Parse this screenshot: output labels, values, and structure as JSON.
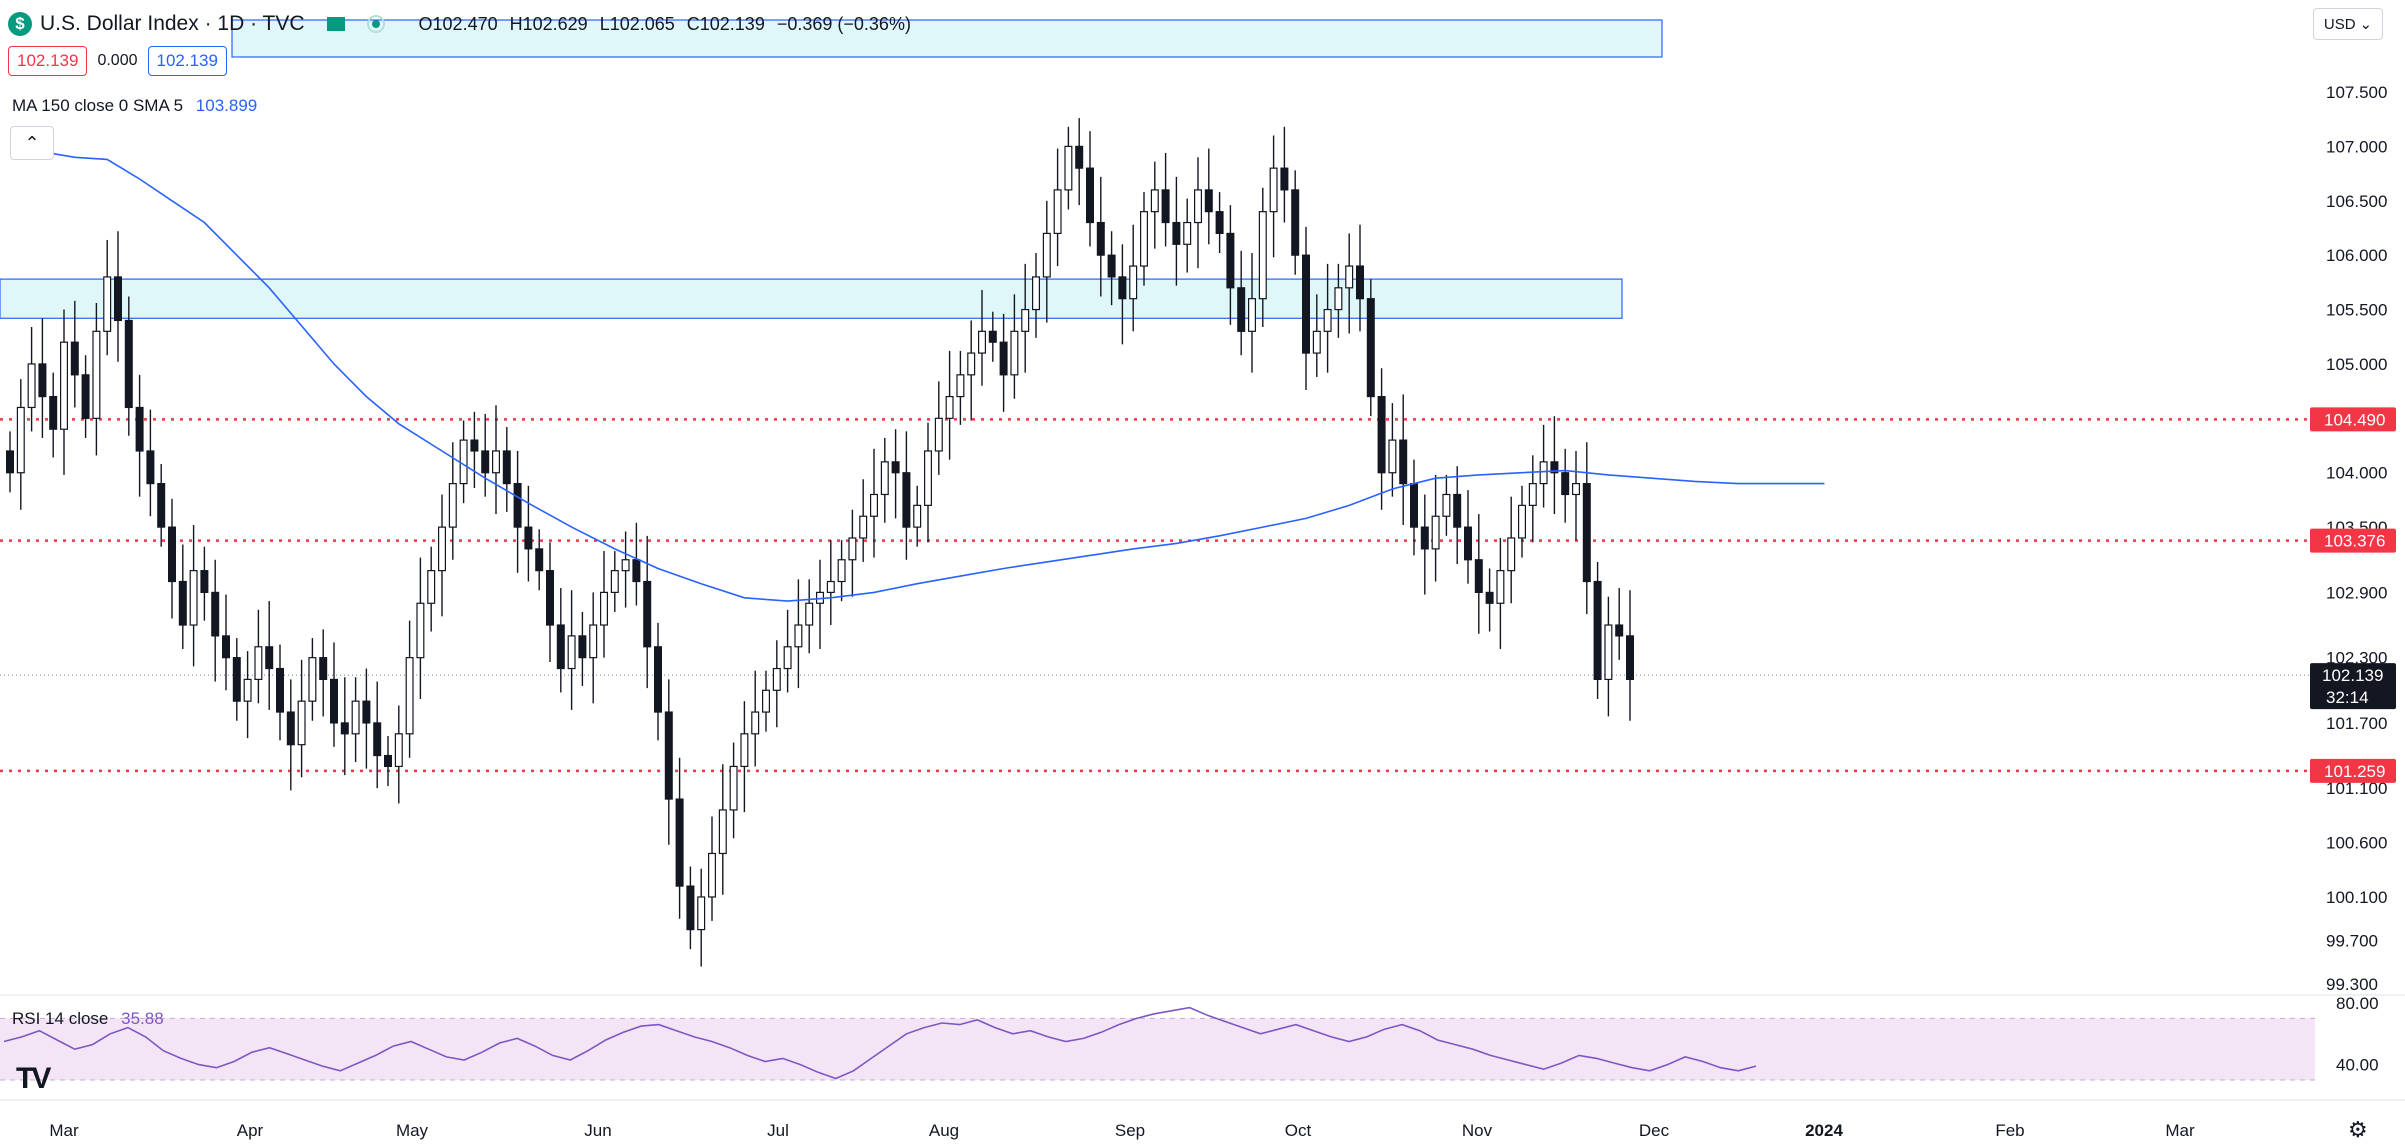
{
  "header": {
    "symbol_logo": "$",
    "symbol_title": "U.S. Dollar Index · 1D · TVC",
    "open": "O102.470",
    "high": "H102.629",
    "low": "L102.065",
    "close": "C102.139",
    "change": "−0.369 (−0.36%)",
    "sell_price": "102.139",
    "spread": "0.000",
    "buy_price": "102.139"
  },
  "ma_legend": {
    "label": "MA 150 close 0 SMA 5",
    "value": "103.899"
  },
  "rsi_legend": {
    "label": "RSI 14 close",
    "value": "35.88"
  },
  "currency_button": {
    "label": "USD",
    "icon": "chevron-down-icon"
  },
  "collapse_button_icon": "chevron-up-icon",
  "settings_icon": "gear-icon",
  "colors": {
    "accent": "#2962ff",
    "support_line": "#f23645",
    "zone_fill": "#e0f7fa",
    "rsi_line": "#7e57c2",
    "rsi_band": "#f3e5f5"
  },
  "chart_data": [
    {
      "type": "candlestick",
      "title": "U.S. Dollar Index · 1D · TVC",
      "ylim": [
        99.3,
        107.5
      ],
      "y_ticks": [
        "107.500",
        "107.000",
        "106.500",
        "106.000",
        "105.500",
        "105.000",
        "104.000",
        "103.500",
        "102.900",
        "102.300",
        "101.700",
        "101.100",
        "100.600",
        "100.100",
        "99.700",
        "99.300"
      ],
      "x_ticks": [
        "Mar",
        "Apr",
        "May",
        "Jun",
        "Jul",
        "Aug",
        "Sep",
        "Oct",
        "Nov",
        "Dec",
        "2024",
        "Feb",
        "Mar"
      ],
      "last_price": "102.139",
      "countdown": "32:14",
      "horizontal_lines": [
        {
          "label": "104.490",
          "value": 104.49
        },
        {
          "label": "103.376",
          "value": 103.376
        },
        {
          "label": "101.259",
          "value": 101.259
        }
      ],
      "zone": {
        "low": 105.42,
        "high": 105.78
      },
      "closes": [
        104.0,
        104.6,
        105.0,
        104.7,
        104.4,
        105.2,
        104.9,
        104.5,
        105.3,
        105.8,
        105.4,
        104.6,
        104.2,
        103.9,
        103.5,
        103.0,
        102.6,
        103.1,
        102.9,
        102.5,
        102.3,
        101.9,
        102.1,
        102.4,
        102.2,
        101.8,
        101.5,
        101.9,
        102.3,
        102.1,
        101.7,
        101.6,
        101.9,
        101.7,
        101.4,
        101.3,
        101.6,
        102.3,
        102.8,
        103.1,
        103.5,
        103.9,
        104.3,
        104.2,
        104.0,
        104.2,
        103.9,
        103.5,
        103.3,
        103.1,
        102.6,
        102.2,
        102.5,
        102.3,
        102.6,
        102.9,
        103.1,
        103.2,
        103.0,
        102.4,
        101.8,
        101.0,
        100.2,
        99.8,
        100.1,
        100.5,
        100.9,
        101.3,
        101.6,
        101.8,
        102.0,
        102.2,
        102.4,
        102.6,
        102.8,
        102.9,
        103.0,
        103.2,
        103.4,
        103.6,
        103.8,
        104.1,
        104.0,
        103.5,
        103.7,
        104.2,
        104.5,
        104.7,
        104.9,
        105.1,
        105.3,
        105.2,
        104.9,
        105.3,
        105.5,
        105.8,
        106.2,
        106.6,
        107.0,
        106.8,
        106.3,
        106.0,
        105.8,
        105.6,
        105.9,
        106.4,
        106.6,
        106.3,
        106.1,
        106.3,
        106.6,
        106.4,
        106.2,
        105.7,
        105.3,
        105.6,
        106.4,
        106.8,
        106.6,
        106.0,
        105.1,
        105.3,
        105.5,
        105.7,
        105.9,
        105.6,
        104.7,
        104.0,
        104.3,
        103.9,
        103.5,
        103.3,
        103.6,
        103.8,
        103.5,
        103.2,
        102.9,
        102.8,
        103.1,
        103.4,
        103.7,
        103.9,
        104.1,
        104.0,
        103.8,
        103.9,
        103.0,
        102.1,
        102.6,
        102.5,
        102.1
      ]
    },
    {
      "type": "line",
      "title": "MA 150 close 0 SMA 5",
      "ylim": [
        99.3,
        107.5
      ],
      "x": [
        0,
        3,
        6,
        9,
        12,
        15,
        18,
        21,
        24,
        27,
        30,
        33,
        36,
        40,
        44,
        48,
        52,
        56,
        60,
        64,
        68,
        72,
        76,
        80,
        84,
        88,
        92,
        96,
        100,
        104,
        108,
        112,
        116,
        120,
        124,
        128,
        132,
        136,
        140,
        144,
        148,
        152,
        156,
        160,
        164,
        168
      ],
      "values": [
        107.0,
        106.95,
        106.9,
        106.88,
        106.7,
        106.5,
        106.3,
        106.0,
        105.7,
        105.35,
        105.0,
        104.7,
        104.45,
        104.2,
        103.95,
        103.72,
        103.5,
        103.3,
        103.12,
        102.98,
        102.85,
        102.82,
        102.85,
        102.9,
        102.98,
        103.05,
        103.12,
        103.18,
        103.24,
        103.3,
        103.35,
        103.42,
        103.5,
        103.58,
        103.7,
        103.85,
        103.95,
        103.98,
        104.0,
        104.02,
        103.98,
        103.95,
        103.92,
        103.9,
        103.9,
        103.9
      ]
    },
    {
      "type": "line",
      "title": "RSI 14 close",
      "ylim": [
        30,
        80
      ],
      "y_ticks": [
        "80.00",
        "40.00"
      ],
      "band": [
        30,
        70
      ],
      "values": [
        55,
        58,
        62,
        56,
        50,
        53,
        60,
        64,
        58,
        49,
        44,
        40,
        38,
        42,
        48,
        51,
        47,
        43,
        39,
        36,
        41,
        46,
        52,
        55,
        50,
        45,
        43,
        48,
        54,
        57,
        52,
        46,
        43,
        49,
        56,
        61,
        65,
        66,
        62,
        58,
        55,
        51,
        46,
        42,
        44,
        40,
        35,
        31,
        36,
        44,
        52,
        60,
        64,
        67,
        66,
        69,
        64,
        60,
        62,
        58,
        55,
        57,
        61,
        66,
        70,
        73,
        75,
        77,
        72,
        68,
        64,
        60,
        63,
        66,
        62,
        58,
        55,
        58,
        63,
        66,
        62,
        56,
        53,
        50,
        46,
        43,
        40,
        37,
        41,
        46,
        44,
        41,
        38,
        36,
        40,
        45,
        42,
        38,
        36,
        39
      ]
    }
  ]
}
